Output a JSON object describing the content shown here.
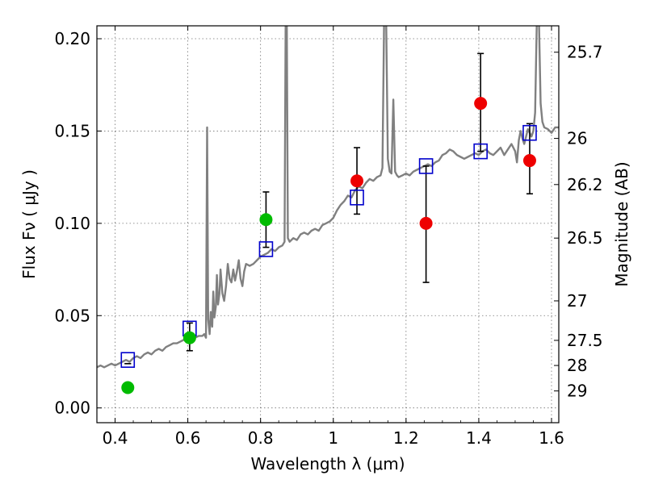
{
  "chart_data": {
    "type": "scatter",
    "title": "",
    "xlabel": "Wavelength  λ (μm)",
    "ylabel": "Flux  Fν  ( μJy )",
    "ylabel_right": "Magnitude (AB)",
    "xlim": [
      0.35,
      1.62
    ],
    "ylim": [
      -0.008,
      0.207
    ],
    "grid": true,
    "x_ticks": [
      0.4,
      0.6,
      0.8,
      1.0,
      1.2,
      1.4,
      1.6
    ],
    "x_tick_labels": [
      "0.4",
      "0.6",
      "0.8",
      "1",
      "1.2",
      "1.4",
      "1.6"
    ],
    "y_ticks": [
      0.0,
      0.05,
      0.1,
      0.15,
      0.2
    ],
    "y_tick_labels": [
      "0.00",
      "0.05",
      "0.10",
      "0.15",
      "0.20"
    ],
    "right_ticks": [
      {
        "flux": 0.1927,
        "label": "25.7"
      },
      {
        "flux": 0.146,
        "label": "26"
      },
      {
        "flux": 0.121,
        "label": "26.2"
      },
      {
        "flux": 0.092,
        "label": "26.5"
      },
      {
        "flux": 0.058,
        "label": "27"
      },
      {
        "flux": 0.0366,
        "label": "27.5"
      },
      {
        "flux": 0.023,
        "label": "28"
      },
      {
        "flux": 0.0092,
        "label": "29"
      }
    ],
    "series": [
      {
        "kind": "line",
        "color": "#808080",
        "points": [
          [
            0.35,
            0.022
          ],
          [
            0.36,
            0.023
          ],
          [
            0.37,
            0.022
          ],
          [
            0.38,
            0.023
          ],
          [
            0.39,
            0.024
          ],
          [
            0.4,
            0.023
          ],
          [
            0.41,
            0.024
          ],
          [
            0.42,
            0.025
          ],
          [
            0.43,
            0.026
          ],
          [
            0.44,
            0.025
          ],
          [
            0.45,
            0.027
          ],
          [
            0.46,
            0.028
          ],
          [
            0.47,
            0.027
          ],
          [
            0.48,
            0.029
          ],
          [
            0.49,
            0.03
          ],
          [
            0.5,
            0.029
          ],
          [
            0.51,
            0.031
          ],
          [
            0.52,
            0.032
          ],
          [
            0.53,
            0.031
          ],
          [
            0.54,
            0.033
          ],
          [
            0.55,
            0.034
          ],
          [
            0.56,
            0.035
          ],
          [
            0.57,
            0.035
          ],
          [
            0.58,
            0.036
          ],
          [
            0.59,
            0.037
          ],
          [
            0.6,
            0.036
          ],
          [
            0.61,
            0.037
          ],
          [
            0.62,
            0.038
          ],
          [
            0.63,
            0.039
          ],
          [
            0.64,
            0.039
          ],
          [
            0.645,
            0.04
          ],
          [
            0.65,
            0.038
          ],
          [
            0.653,
            0.152
          ],
          [
            0.656,
            0.048
          ],
          [
            0.66,
            0.04
          ],
          [
            0.663,
            0.052
          ],
          [
            0.667,
            0.044
          ],
          [
            0.67,
            0.063
          ],
          [
            0.673,
            0.049
          ],
          [
            0.677,
            0.055
          ],
          [
            0.68,
            0.072
          ],
          [
            0.683,
            0.056
          ],
          [
            0.687,
            0.062
          ],
          [
            0.69,
            0.075
          ],
          [
            0.695,
            0.062
          ],
          [
            0.7,
            0.058
          ],
          [
            0.705,
            0.066
          ],
          [
            0.71,
            0.078
          ],
          [
            0.715,
            0.07
          ],
          [
            0.72,
            0.068
          ],
          [
            0.725,
            0.075
          ],
          [
            0.73,
            0.069
          ],
          [
            0.735,
            0.074
          ],
          [
            0.74,
            0.08
          ],
          [
            0.745,
            0.07
          ],
          [
            0.75,
            0.066
          ],
          [
            0.755,
            0.074
          ],
          [
            0.76,
            0.078
          ],
          [
            0.77,
            0.077
          ],
          [
            0.78,
            0.078
          ],
          [
            0.79,
            0.08
          ],
          [
            0.8,
            0.082
          ],
          [
            0.81,
            0.083
          ],
          [
            0.82,
            0.084
          ],
          [
            0.83,
            0.086
          ],
          [
            0.84,
            0.085
          ],
          [
            0.85,
            0.087
          ],
          [
            0.86,
            0.088
          ],
          [
            0.866,
            0.09
          ],
          [
            0.869,
            0.215
          ],
          [
            0.872,
            0.215
          ],
          [
            0.875,
            0.092
          ],
          [
            0.88,
            0.09
          ],
          [
            0.89,
            0.092
          ],
          [
            0.9,
            0.091
          ],
          [
            0.91,
            0.094
          ],
          [
            0.92,
            0.095
          ],
          [
            0.93,
            0.094
          ],
          [
            0.94,
            0.096
          ],
          [
            0.95,
            0.097
          ],
          [
            0.96,
            0.096
          ],
          [
            0.97,
            0.099
          ],
          [
            0.98,
            0.1
          ],
          [
            0.99,
            0.101
          ],
          [
            1.0,
            0.103
          ],
          [
            1.01,
            0.107
          ],
          [
            1.02,
            0.11
          ],
          [
            1.03,
            0.112
          ],
          [
            1.04,
            0.115
          ],
          [
            1.05,
            0.114
          ],
          [
            1.06,
            0.118
          ],
          [
            1.07,
            0.12
          ],
          [
            1.08,
            0.119
          ],
          [
            1.09,
            0.122
          ],
          [
            1.1,
            0.124
          ],
          [
            1.11,
            0.123
          ],
          [
            1.12,
            0.125
          ],
          [
            1.13,
            0.126
          ],
          [
            1.135,
            0.13
          ],
          [
            1.14,
            0.215
          ],
          [
            1.145,
            0.215
          ],
          [
            1.15,
            0.135
          ],
          [
            1.155,
            0.128
          ],
          [
            1.16,
            0.127
          ],
          [
            1.165,
            0.167
          ],
          [
            1.17,
            0.128
          ],
          [
            1.175,
            0.126
          ],
          [
            1.18,
            0.125
          ],
          [
            1.19,
            0.126
          ],
          [
            1.2,
            0.127
          ],
          [
            1.21,
            0.126
          ],
          [
            1.22,
            0.128
          ],
          [
            1.23,
            0.129
          ],
          [
            1.24,
            0.13
          ],
          [
            1.25,
            0.131
          ],
          [
            1.26,
            0.132
          ],
          [
            1.27,
            0.131
          ],
          [
            1.28,
            0.133
          ],
          [
            1.29,
            0.134
          ],
          [
            1.3,
            0.137
          ],
          [
            1.31,
            0.138
          ],
          [
            1.32,
            0.14
          ],
          [
            1.33,
            0.139
          ],
          [
            1.34,
            0.137
          ],
          [
            1.35,
            0.136
          ],
          [
            1.36,
            0.135
          ],
          [
            1.37,
            0.136
          ],
          [
            1.38,
            0.137
          ],
          [
            1.39,
            0.138
          ],
          [
            1.4,
            0.137
          ],
          [
            1.41,
            0.139
          ],
          [
            1.42,
            0.14
          ],
          [
            1.43,
            0.138
          ],
          [
            1.44,
            0.137
          ],
          [
            1.45,
            0.139
          ],
          [
            1.46,
            0.141
          ],
          [
            1.47,
            0.137
          ],
          [
            1.48,
            0.14
          ],
          [
            1.49,
            0.143
          ],
          [
            1.5,
            0.139
          ],
          [
            1.505,
            0.133
          ],
          [
            1.51,
            0.145
          ],
          [
            1.515,
            0.15
          ],
          [
            1.52,
            0.146
          ],
          [
            1.525,
            0.143
          ],
          [
            1.53,
            0.147
          ],
          [
            1.535,
            0.151
          ],
          [
            1.54,
            0.149
          ],
          [
            1.545,
            0.147
          ],
          [
            1.55,
            0.15
          ],
          [
            1.555,
            0.16
          ],
          [
            1.56,
            0.215
          ],
          [
            1.565,
            0.215
          ],
          [
            1.57,
            0.165
          ],
          [
            1.575,
            0.155
          ],
          [
            1.58,
            0.152
          ],
          [
            1.59,
            0.151
          ],
          [
            1.6,
            0.149
          ],
          [
            1.61,
            0.152
          ],
          [
            1.62,
            0.152
          ]
        ]
      },
      {
        "kind": "model_points",
        "marker": "open-square",
        "color": "#0000cc",
        "x": [
          0.435,
          0.605,
          0.815,
          1.065,
          1.255,
          1.405,
          1.54
        ],
        "y": [
          0.026,
          0.043,
          0.086,
          0.114,
          0.131,
          0.139,
          0.149
        ]
      },
      {
        "kind": "observed",
        "marker": "filled-circle",
        "color": "#00bb00",
        "x": [
          0.435,
          0.605,
          0.815
        ],
        "y": [
          0.011,
          0.038,
          0.102
        ],
        "yerr_low": [
          0.024,
          0.031,
          0.087
        ],
        "yerr_high": [
          0.024,
          0.046,
          0.117
        ]
      },
      {
        "kind": "observed",
        "marker": "filled-circle",
        "color": "#ee0000",
        "x": [
          1.065,
          1.255,
          1.405,
          1.54
        ],
        "y": [
          0.123,
          0.1,
          0.165,
          0.134
        ],
        "yerr_low": [
          0.105,
          0.068,
          0.139,
          0.116
        ],
        "yerr_high": [
          0.141,
          0.131,
          0.192,
          0.154
        ]
      }
    ]
  }
}
